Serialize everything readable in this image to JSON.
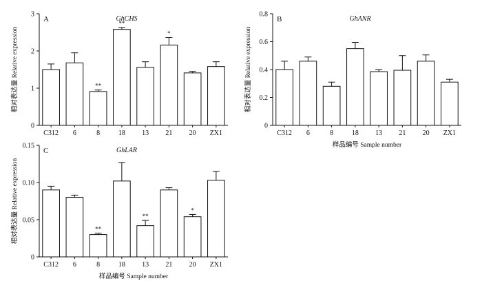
{
  "chart_data": [
    {
      "type": "bar",
      "panel": "A",
      "title": "GhCHS",
      "xlabel": "",
      "ylabel": "相对表达量 Relative expression",
      "categories": [
        "C312",
        "6",
        "8",
        "18",
        "13",
        "21",
        "20",
        "ZX1"
      ],
      "values": [
        1.5,
        1.68,
        0.91,
        2.58,
        1.56,
        2.16,
        1.41,
        1.58
      ],
      "errors": [
        0.15,
        0.27,
        0.04,
        0.05,
        0.15,
        0.2,
        0.04,
        0.13
      ],
      "significance": [
        "",
        "",
        "**",
        "**",
        "",
        "*",
        "",
        ""
      ],
      "ylim": [
        0,
        3
      ],
      "yticks": [
        "0",
        "1",
        "2",
        "3"
      ]
    },
    {
      "type": "bar",
      "panel": "B",
      "title": "GhANR",
      "xlabel": "样品编号 Sample number",
      "ylabel": "相对表达量 Relative expression",
      "categories": [
        "C312",
        "6",
        "8",
        "18",
        "13",
        "21",
        "20",
        "ZX1"
      ],
      "values": [
        0.4,
        0.46,
        0.28,
        0.55,
        0.385,
        0.395,
        0.46,
        0.31
      ],
      "errors": [
        0.06,
        0.03,
        0.03,
        0.045,
        0.015,
        0.105,
        0.045,
        0.02
      ],
      "significance": [
        "",
        "",
        "",
        "",
        "",
        "",
        "",
        ""
      ],
      "ylim": [
        0,
        0.8
      ],
      "yticks": [
        "0",
        "0.2",
        "0.4",
        "0.6",
        "0.8"
      ]
    },
    {
      "type": "bar",
      "panel": "C",
      "title": "GhLAR",
      "xlabel": "样品编号 Sample number",
      "ylabel": "相对表达量 Relative expression",
      "categories": [
        "C312",
        "6",
        "8",
        "18",
        "13",
        "21",
        "20",
        "ZX1"
      ],
      "values": [
        0.09,
        0.08,
        0.03,
        0.102,
        0.042,
        0.09,
        0.054,
        0.103
      ],
      "errors": [
        0.005,
        0.003,
        0.002,
        0.025,
        0.007,
        0.003,
        0.003,
        0.012
      ],
      "significance": [
        "",
        "",
        "**",
        "",
        "**",
        "",
        "*",
        ""
      ],
      "ylim": [
        0,
        0.15
      ],
      "yticks": [
        "0",
        "0.05",
        "0.10",
        "0.15"
      ]
    }
  ]
}
